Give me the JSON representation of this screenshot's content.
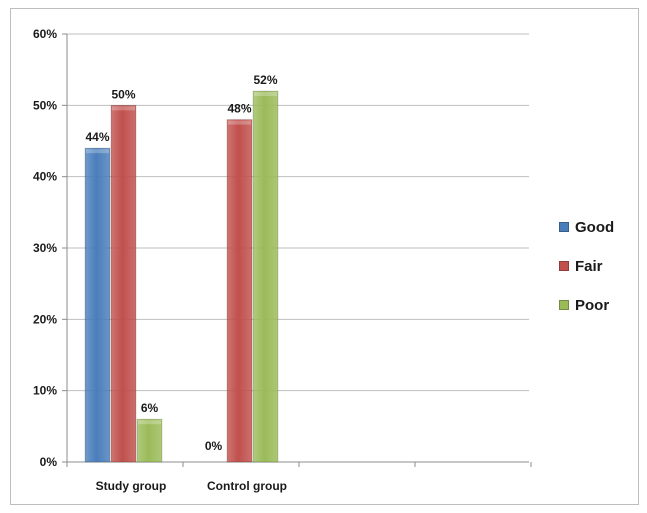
{
  "chart_data": {
    "type": "bar",
    "categories": [
      "Study group",
      "Control group"
    ],
    "series": [
      {
        "name": "Good",
        "color": "#4a7ebb",
        "values": [
          44,
          0
        ],
        "labels": [
          "44%",
          "0%"
        ]
      },
      {
        "name": "Fair",
        "color": "#c0504d",
        "values": [
          50,
          48
        ],
        "labels": [
          "50%",
          "48%"
        ]
      },
      {
        "name": "Poor",
        "color": "#9bbb59",
        "values": [
          6,
          52
        ],
        "labels": [
          "6%",
          "52%"
        ]
      }
    ],
    "ylim": [
      0,
      60
    ],
    "yticks": [
      0,
      10,
      20,
      30,
      40,
      50,
      60
    ],
    "ytick_labels": [
      "0%",
      "10%",
      "20%",
      "30%",
      "40%",
      "50%",
      "60%"
    ],
    "grid": true,
    "legend_position": "right",
    "title": "",
    "xlabel": "",
    "ylabel": ""
  }
}
